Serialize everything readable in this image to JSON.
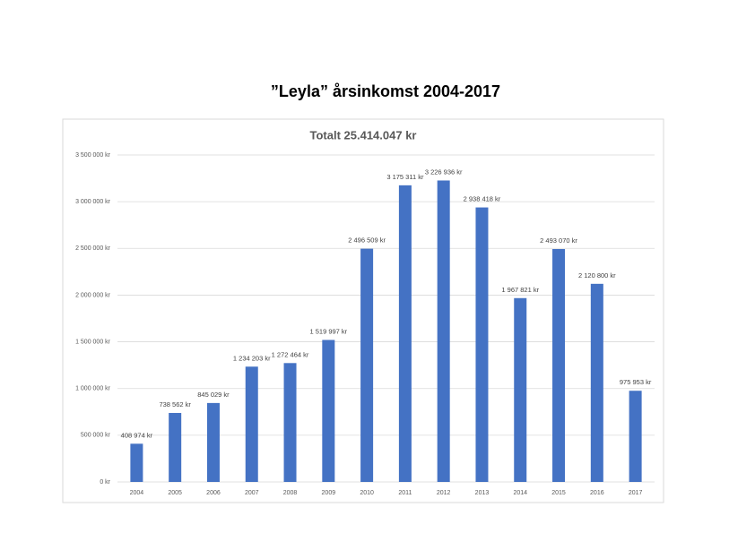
{
  "header": {
    "title": "”Leyla” årsinkomst 2004-2017"
  },
  "chart_data": {
    "type": "bar",
    "title": "Totalt 25.414.047 kr",
    "categories": [
      "2004",
      "2005",
      "2006",
      "2007",
      "2008",
      "2009",
      "2010",
      "2011",
      "2012",
      "2013",
      "2014",
      "2015",
      "2016",
      "2017"
    ],
    "values": [
      408974,
      738562,
      845029,
      1234203,
      1272464,
      1519997,
      2496509,
      3175311,
      3226936,
      2938418,
      1967821,
      2493070,
      2120800,
      975953
    ],
    "value_labels": [
      "408 974 kr",
      "738 562 kr",
      "845 029 kr",
      "1 234 203 kr",
      "1 272 464 kr",
      "1 519 997 kr",
      "2 496 509 kr",
      "3 175 311 kr",
      "3 226 936 kr",
      "2 938 418 kr",
      "1 967 821 kr",
      "2 493 070 kr",
      "2 120 800 kr",
      "975 953 kr"
    ],
    "color": "#4472c4",
    "ylim": [
      0,
      3500000
    ],
    "yticks": [
      {
        "value": 0,
        "label": "0 kr"
      },
      {
        "value": 500000,
        "label": "500 000 kr"
      },
      {
        "value": 1000000,
        "label": "1 000 000 kr"
      },
      {
        "value": 1500000,
        "label": "1 500 000 kr"
      },
      {
        "value": 2000000,
        "label": "2 000 000 kr"
      },
      {
        "value": 2500000,
        "label": "2 500 000 kr"
      },
      {
        "value": 3000000,
        "label": "3 000 000 kr"
      },
      {
        "value": 3500000,
        "label": "3 500 000 kr"
      }
    ],
    "grid": true
  }
}
